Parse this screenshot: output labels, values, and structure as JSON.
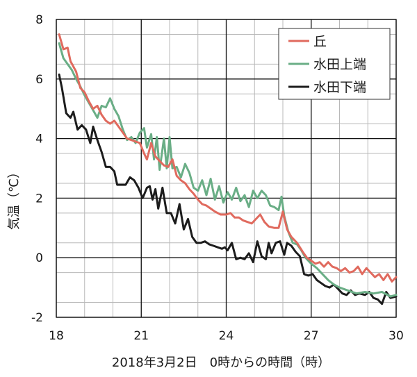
{
  "chart_data": {
    "type": "line",
    "title": "",
    "xlabel": "2018年3月2日　0時からの時間（時）",
    "ylabel": "気温（℃）",
    "xlim": [
      18,
      30
    ],
    "ylim": [
      -2,
      8
    ],
    "x_major_ticks": [
      18,
      21,
      24,
      27,
      30
    ],
    "y_major_ticks": [
      -2,
      0,
      2,
      4,
      6,
      8
    ],
    "x_minor_step": 1,
    "y_minor_step": 1,
    "grid": true,
    "legend_position": "top-right",
    "series": [
      {
        "name": "丘",
        "color": "#e06a5e",
        "points": [
          [
            18.1,
            7.5
          ],
          [
            18.25,
            7.0
          ],
          [
            18.4,
            7.05
          ],
          [
            18.5,
            6.6
          ],
          [
            18.7,
            6.25
          ],
          [
            18.85,
            5.7
          ],
          [
            19.0,
            5.55
          ],
          [
            19.15,
            5.25
          ],
          [
            19.3,
            5.0
          ],
          [
            19.45,
            5.1
          ],
          [
            19.6,
            4.8
          ],
          [
            19.75,
            4.6
          ],
          [
            19.9,
            4.5
          ],
          [
            20.05,
            4.6
          ],
          [
            20.2,
            4.4
          ],
          [
            20.35,
            4.2
          ],
          [
            20.5,
            4.0
          ],
          [
            20.65,
            3.95
          ],
          [
            20.8,
            3.9
          ],
          [
            20.95,
            3.85
          ],
          [
            21.1,
            3.5
          ],
          [
            21.2,
            3.3
          ],
          [
            21.35,
            3.85
          ],
          [
            21.5,
            3.4
          ],
          [
            21.65,
            3.25
          ],
          [
            21.8,
            3.1
          ],
          [
            21.95,
            3.05
          ],
          [
            22.1,
            3.3
          ],
          [
            22.25,
            2.75
          ],
          [
            22.4,
            2.6
          ],
          [
            22.55,
            2.5
          ],
          [
            22.7,
            2.3
          ],
          [
            22.85,
            2.15
          ],
          [
            23.0,
            1.95
          ],
          [
            23.15,
            1.8
          ],
          [
            23.3,
            1.75
          ],
          [
            23.45,
            1.65
          ],
          [
            23.6,
            1.55
          ],
          [
            23.8,
            1.45
          ],
          [
            24.0,
            1.45
          ],
          [
            24.15,
            1.5
          ],
          [
            24.3,
            1.35
          ],
          [
            24.45,
            1.35
          ],
          [
            24.6,
            1.25
          ],
          [
            24.75,
            1.2
          ],
          [
            24.9,
            1.15
          ],
          [
            25.05,
            1.3
          ],
          [
            25.2,
            1.45
          ],
          [
            25.35,
            1.2
          ],
          [
            25.5,
            1.05
          ],
          [
            25.7,
            1.0
          ],
          [
            25.85,
            1.0
          ],
          [
            26.0,
            1.55
          ],
          [
            26.15,
            0.95
          ],
          [
            26.3,
            0.7
          ],
          [
            26.5,
            0.5
          ],
          [
            26.7,
            0.2
          ],
          [
            26.85,
            0.0
          ],
          [
            27.0,
            -0.1
          ],
          [
            27.15,
            -0.2
          ],
          [
            27.3,
            -0.15
          ],
          [
            27.45,
            -0.3
          ],
          [
            27.6,
            -0.15
          ],
          [
            27.75,
            -0.3
          ],
          [
            27.9,
            -0.35
          ],
          [
            28.05,
            -0.45
          ],
          [
            28.2,
            -0.35
          ],
          [
            28.35,
            -0.5
          ],
          [
            28.5,
            -0.45
          ],
          [
            28.65,
            -0.3
          ],
          [
            28.8,
            -0.55
          ],
          [
            28.95,
            -0.35
          ],
          [
            29.1,
            -0.5
          ],
          [
            29.25,
            -0.65
          ],
          [
            29.4,
            -0.55
          ],
          [
            29.55,
            -0.75
          ],
          [
            29.7,
            -0.55
          ],
          [
            29.85,
            -0.8
          ],
          [
            30.0,
            -0.65
          ]
        ]
      },
      {
        "name": "水田上端",
        "color": "#6aae86",
        "points": [
          [
            18.1,
            7.2
          ],
          [
            18.25,
            6.7
          ],
          [
            18.4,
            6.5
          ],
          [
            18.55,
            6.3
          ],
          [
            18.7,
            6.0
          ],
          [
            18.85,
            5.75
          ],
          [
            19.0,
            5.45
          ],
          [
            19.15,
            5.2
          ],
          [
            19.3,
            4.95
          ],
          [
            19.45,
            4.7
          ],
          [
            19.6,
            5.1
          ],
          [
            19.75,
            5.05
          ],
          [
            19.9,
            5.35
          ],
          [
            20.05,
            5.0
          ],
          [
            20.2,
            4.75
          ],
          [
            20.35,
            4.3
          ],
          [
            20.5,
            3.95
          ],
          [
            20.65,
            4.05
          ],
          [
            20.8,
            3.85
          ],
          [
            20.95,
            4.2
          ],
          [
            21.1,
            4.35
          ],
          [
            21.2,
            3.7
          ],
          [
            21.35,
            4.15
          ],
          [
            21.45,
            3.3
          ],
          [
            21.55,
            4.05
          ],
          [
            21.65,
            2.95
          ],
          [
            21.8,
            4.0
          ],
          [
            21.9,
            3.0
          ],
          [
            22.0,
            4.05
          ],
          [
            22.1,
            3.0
          ],
          [
            22.25,
            3.05
          ],
          [
            22.4,
            2.7
          ],
          [
            22.55,
            3.15
          ],
          [
            22.7,
            2.85
          ],
          [
            22.85,
            2.35
          ],
          [
            23.0,
            2.25
          ],
          [
            23.15,
            2.6
          ],
          [
            23.3,
            2.1
          ],
          [
            23.45,
            2.65
          ],
          [
            23.6,
            1.95
          ],
          [
            23.75,
            2.4
          ],
          [
            23.9,
            1.85
          ],
          [
            24.05,
            2.2
          ],
          [
            24.2,
            1.95
          ],
          [
            24.35,
            2.35
          ],
          [
            24.5,
            1.9
          ],
          [
            24.65,
            2.1
          ],
          [
            24.8,
            1.7
          ],
          [
            24.95,
            2.25
          ],
          [
            25.1,
            2.0
          ],
          [
            25.25,
            2.25
          ],
          [
            25.4,
            2.1
          ],
          [
            25.55,
            1.75
          ],
          [
            25.7,
            1.7
          ],
          [
            25.85,
            1.6
          ],
          [
            25.95,
            2.05
          ],
          [
            26.05,
            1.4
          ],
          [
            26.2,
            0.85
          ],
          [
            26.35,
            0.5
          ],
          [
            26.5,
            0.45
          ],
          [
            26.65,
            0.25
          ],
          [
            26.8,
            0.0
          ],
          [
            27.0,
            -0.2
          ],
          [
            27.2,
            -0.35
          ],
          [
            27.4,
            -0.55
          ],
          [
            27.6,
            -0.75
          ],
          [
            27.8,
            -0.9
          ],
          [
            28.0,
            -1.0
          ],
          [
            28.3,
            -1.1
          ],
          [
            28.6,
            -1.2
          ],
          [
            28.9,
            -1.15
          ],
          [
            29.2,
            -1.2
          ],
          [
            29.5,
            -1.15
          ],
          [
            29.8,
            -1.3
          ],
          [
            30.0,
            -1.25
          ]
        ]
      },
      {
        "name": "水田下端",
        "color": "#1c1c1c",
        "points": [
          [
            18.1,
            6.15
          ],
          [
            18.2,
            5.7
          ],
          [
            18.35,
            4.85
          ],
          [
            18.5,
            4.7
          ],
          [
            18.6,
            4.9
          ],
          [
            18.75,
            4.3
          ],
          [
            18.9,
            4.45
          ],
          [
            19.05,
            4.3
          ],
          [
            19.2,
            3.85
          ],
          [
            19.3,
            4.4
          ],
          [
            19.45,
            3.95
          ],
          [
            19.6,
            3.55
          ],
          [
            19.75,
            3.05
          ],
          [
            19.9,
            3.05
          ],
          [
            20.05,
            2.9
          ],
          [
            20.15,
            2.45
          ],
          [
            20.3,
            2.45
          ],
          [
            20.45,
            2.45
          ],
          [
            20.6,
            2.7
          ],
          [
            20.75,
            2.6
          ],
          [
            20.9,
            2.35
          ],
          [
            21.05,
            2.0
          ],
          [
            21.2,
            2.35
          ],
          [
            21.3,
            2.4
          ],
          [
            21.4,
            1.95
          ],
          [
            21.5,
            2.3
          ],
          [
            21.6,
            1.65
          ],
          [
            21.75,
            2.35
          ],
          [
            21.9,
            1.5
          ],
          [
            22.05,
            1.5
          ],
          [
            22.2,
            1.15
          ],
          [
            22.35,
            1.8
          ],
          [
            22.5,
            0.95
          ],
          [
            22.65,
            1.3
          ],
          [
            22.8,
            0.7
          ],
          [
            22.95,
            0.5
          ],
          [
            23.1,
            0.5
          ],
          [
            23.25,
            0.55
          ],
          [
            23.4,
            0.45
          ],
          [
            23.55,
            0.4
          ],
          [
            23.7,
            0.35
          ],
          [
            23.85,
            0.3
          ],
          [
            23.95,
            0.35
          ],
          [
            24.05,
            0.25
          ],
          [
            24.2,
            0.5
          ],
          [
            24.35,
            -0.05
          ],
          [
            24.5,
            0.0
          ],
          [
            24.65,
            -0.05
          ],
          [
            24.8,
            0.15
          ],
          [
            24.95,
            -0.15
          ],
          [
            25.1,
            0.55
          ],
          [
            25.25,
            0.05
          ],
          [
            25.4,
            -0.05
          ],
          [
            25.5,
            0.5
          ],
          [
            25.6,
            0.15
          ],
          [
            25.75,
            0.5
          ],
          [
            25.9,
            0.55
          ],
          [
            26.05,
            0.1
          ],
          [
            26.15,
            0.5
          ],
          [
            26.3,
            0.4
          ],
          [
            26.45,
            0.2
          ],
          [
            26.6,
            0.05
          ],
          [
            26.75,
            -0.55
          ],
          [
            26.9,
            -0.6
          ],
          [
            27.05,
            -0.55
          ],
          [
            27.2,
            -0.75
          ],
          [
            27.35,
            -0.85
          ],
          [
            27.5,
            -0.95
          ],
          [
            27.65,
            -1.0
          ],
          [
            27.8,
            -0.9
          ],
          [
            27.95,
            -1.05
          ],
          [
            28.1,
            -1.2
          ],
          [
            28.25,
            -1.25
          ],
          [
            28.4,
            -1.1
          ],
          [
            28.55,
            -1.25
          ],
          [
            28.7,
            -1.2
          ],
          [
            28.9,
            -1.25
          ],
          [
            29.05,
            -1.15
          ],
          [
            29.2,
            -1.35
          ],
          [
            29.35,
            -1.4
          ],
          [
            29.5,
            -1.55
          ],
          [
            29.65,
            -1.15
          ],
          [
            29.8,
            -1.35
          ],
          [
            30.0,
            -1.3
          ]
        ]
      }
    ]
  }
}
